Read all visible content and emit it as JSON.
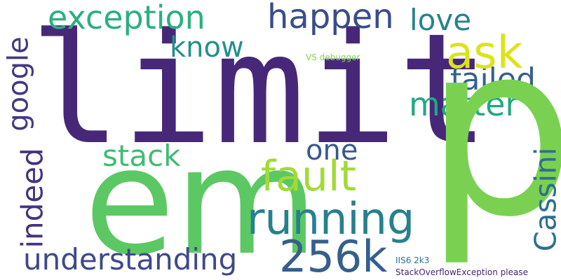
{
  "words": {
    "limit": "limit",
    "p": "p",
    "em": "em",
    "exception": "exception",
    "happen": "happen",
    "love": "love",
    "know": "know",
    "ask": "ask",
    "vs_debugger": "VS debugger",
    "failed": "failed",
    "matter": "matter",
    "google": "google",
    "stack": "stack",
    "one": "one",
    "fault": "fault",
    "cassini": "Cassini",
    "indeed": "indeed",
    "running": "running",
    "k256": "256k",
    "understanding": "understanding",
    "iis6_2k3": "IIS6 2k3",
    "stackoverflowexception_please": "StackOverflowException please"
  },
  "colors": {
    "limit": "#472878",
    "p": "#7ad151",
    "em": "#5cc863",
    "exception": "#2ab07f",
    "happen": "#3a4c8a",
    "love": "#25848e",
    "know": "#21918c",
    "ask": "#dde318",
    "vs_debugger": "#84d44b",
    "failed": "#34618d",
    "matter": "#22a884",
    "google": "#443983",
    "stack": "#3fbc73",
    "one": "#375a8c",
    "fault": "#a2da37",
    "cassini": "#2e6f8e",
    "indeed": "#46327e",
    "running": "#27808e",
    "k256": "#355f8d",
    "understanding": "#3f4889",
    "iis6_2k3": "#2c728e",
    "stackoverflowexception_please": "#482475"
  }
}
